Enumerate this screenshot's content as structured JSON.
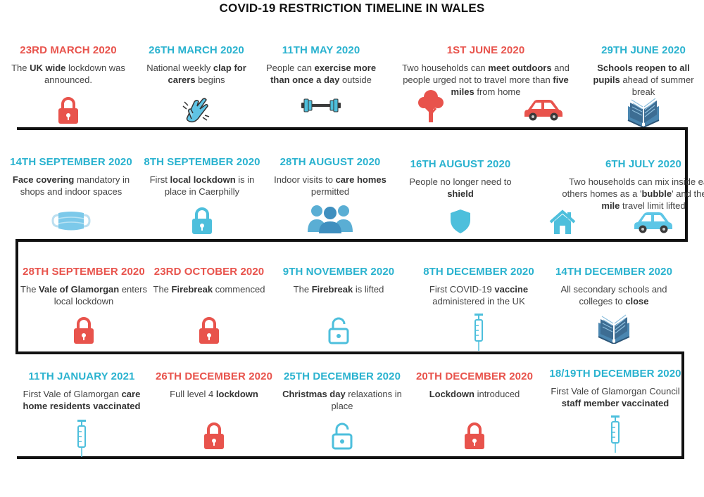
{
  "title": "COVID-19 RESTRICTION TIMELINE IN WALES",
  "colors": {
    "red": "#e8534c",
    "blue": "#29b2cf",
    "icon_blue": "#4dbfdc",
    "line": "#111111"
  },
  "events": [
    {
      "date": "23RD MARCH 2020",
      "color": "red",
      "desc": [
        {
          "t": "The "
        },
        {
          "t": "UK wide",
          "b": true
        },
        {
          "t": " lockdown was announced."
        }
      ],
      "icon": "lock-closed-icon"
    },
    {
      "date": "26TH MARCH 2020",
      "color": "blue",
      "desc": [
        {
          "t": "National weekly "
        },
        {
          "t": "clap for carers",
          "b": true
        },
        {
          "t": " begins"
        }
      ],
      "icon": "clapping-hands-icon"
    },
    {
      "date": "11TH MAY 2020",
      "color": "blue",
      "desc": [
        {
          "t": "People can "
        },
        {
          "t": "exercise more than once a day",
          "b": true
        },
        {
          "t": " outside"
        }
      ],
      "icon": "dumbbell-icon"
    },
    {
      "date": "1ST JUNE 2020",
      "color": "red",
      "desc": [
        {
          "t": "Two households can "
        },
        {
          "t": "meet outdoors",
          "b": true
        },
        {
          "t": " and people urged not to travel more than "
        },
        {
          "t": "five miles",
          "b": true
        },
        {
          "t": " from home"
        }
      ],
      "icon": "tree-and-car-icon"
    },
    {
      "date": "29TH JUNE 2020",
      "color": "blue",
      "desc": [
        {
          "t": "Schools reopen to all pupils",
          "b": true
        },
        {
          "t": " ahead of summer break"
        }
      ],
      "icon": "open-book-icon"
    },
    {
      "date": "6TH JULY 2020",
      "color": "blue",
      "desc": [
        {
          "t": "Two households can mix inside each others homes as a '"
        },
        {
          "t": "bubble",
          "b": true
        },
        {
          "t": "' and the "
        },
        {
          "t": "five mile",
          "b": true
        },
        {
          "t": " travel limit lifted"
        }
      ],
      "icon": "house-and-car-icon"
    },
    {
      "date": "16TH AUGUST 2020",
      "color": "blue",
      "desc": [
        {
          "t": "People no longer need to "
        },
        {
          "t": "shield",
          "b": true
        }
      ],
      "icon": "shield-icon"
    },
    {
      "date": "28TH AUGUST 2020",
      "color": "blue",
      "desc": [
        {
          "t": "Indoor visits to "
        },
        {
          "t": "care homes",
          "b": true
        },
        {
          "t": " permitted"
        }
      ],
      "icon": "people-group-icon"
    },
    {
      "date": "8TH SEPTEMBER 2020",
      "color": "blue",
      "desc": [
        {
          "t": "First "
        },
        {
          "t": "local lockdown",
          "b": true
        },
        {
          "t": " is in place in Caerphilly"
        }
      ],
      "icon": "lock-closed-icon"
    },
    {
      "date": "14TH SEPTEMBER 2020",
      "color": "blue",
      "desc": [
        {
          "t": "Face covering",
          "b": true
        },
        {
          "t": " mandatory in shops and indoor spaces"
        }
      ],
      "icon": "face-mask-icon"
    },
    {
      "date": "28TH SEPTEMBER 2020",
      "color": "red",
      "desc": [
        {
          "t": "The "
        },
        {
          "t": "Vale of Glamorgan",
          "b": true
        },
        {
          "t": " enters local lockdown"
        }
      ],
      "icon": "lock-closed-icon"
    },
    {
      "date": "23RD OCTOBER 2020",
      "color": "red",
      "desc": [
        {
          "t": "The "
        },
        {
          "t": "Firebreak",
          "b": true
        },
        {
          "t": " commenced"
        }
      ],
      "icon": "lock-closed-icon"
    },
    {
      "date": "9TH NOVEMBER 2020",
      "color": "blue",
      "desc": [
        {
          "t": "The "
        },
        {
          "t": "Firebreak",
          "b": true
        },
        {
          "t": " is lifted"
        }
      ],
      "icon": "lock-open-icon"
    },
    {
      "date": "8TH DECEMBER 2020",
      "color": "blue",
      "desc": [
        {
          "t": "First COVID-19 "
        },
        {
          "t": "vaccine",
          "b": true
        },
        {
          "t": " administered in the UK"
        }
      ],
      "icon": "syringe-icon"
    },
    {
      "date": "14TH DECEMBER 2020",
      "color": "blue",
      "desc": [
        {
          "t": "All secondary schools and colleges to "
        },
        {
          "t": "close",
          "b": true
        }
      ],
      "icon": "open-book-icon"
    },
    {
      "date": "18/19TH DECEMBER 2020",
      "color": "blue",
      "desc": [
        {
          "t": "First Vale of Glamorgan Council "
        },
        {
          "t": "staff member vaccinated",
          "b": true
        }
      ],
      "icon": "syringe-icon"
    },
    {
      "date": "20TH DECEMBER 2020",
      "color": "red",
      "desc": [
        {
          "t": "Lockdown",
          "b": true
        },
        {
          "t": " introduced"
        }
      ],
      "icon": "lock-closed-icon"
    },
    {
      "date": "25TH DECEMBER 2020",
      "color": "blue",
      "desc": [
        {
          "t": "Christmas day",
          "b": true
        },
        {
          "t": " relaxations in place"
        }
      ],
      "icon": "lock-open-icon"
    },
    {
      "date": "26TH DECEMBER 2020",
      "color": "red",
      "desc": [
        {
          "t": "Full level 4  "
        },
        {
          "t": "lockdown",
          "b": true
        }
      ],
      "icon": "lock-closed-icon"
    },
    {
      "date": "11TH JANUARY 2021",
      "color": "blue",
      "desc": [
        {
          "t": "First Vale of Glamorgan "
        },
        {
          "t": "care home residents vaccinated",
          "b": true
        }
      ],
      "icon": "syringe-icon"
    }
  ]
}
